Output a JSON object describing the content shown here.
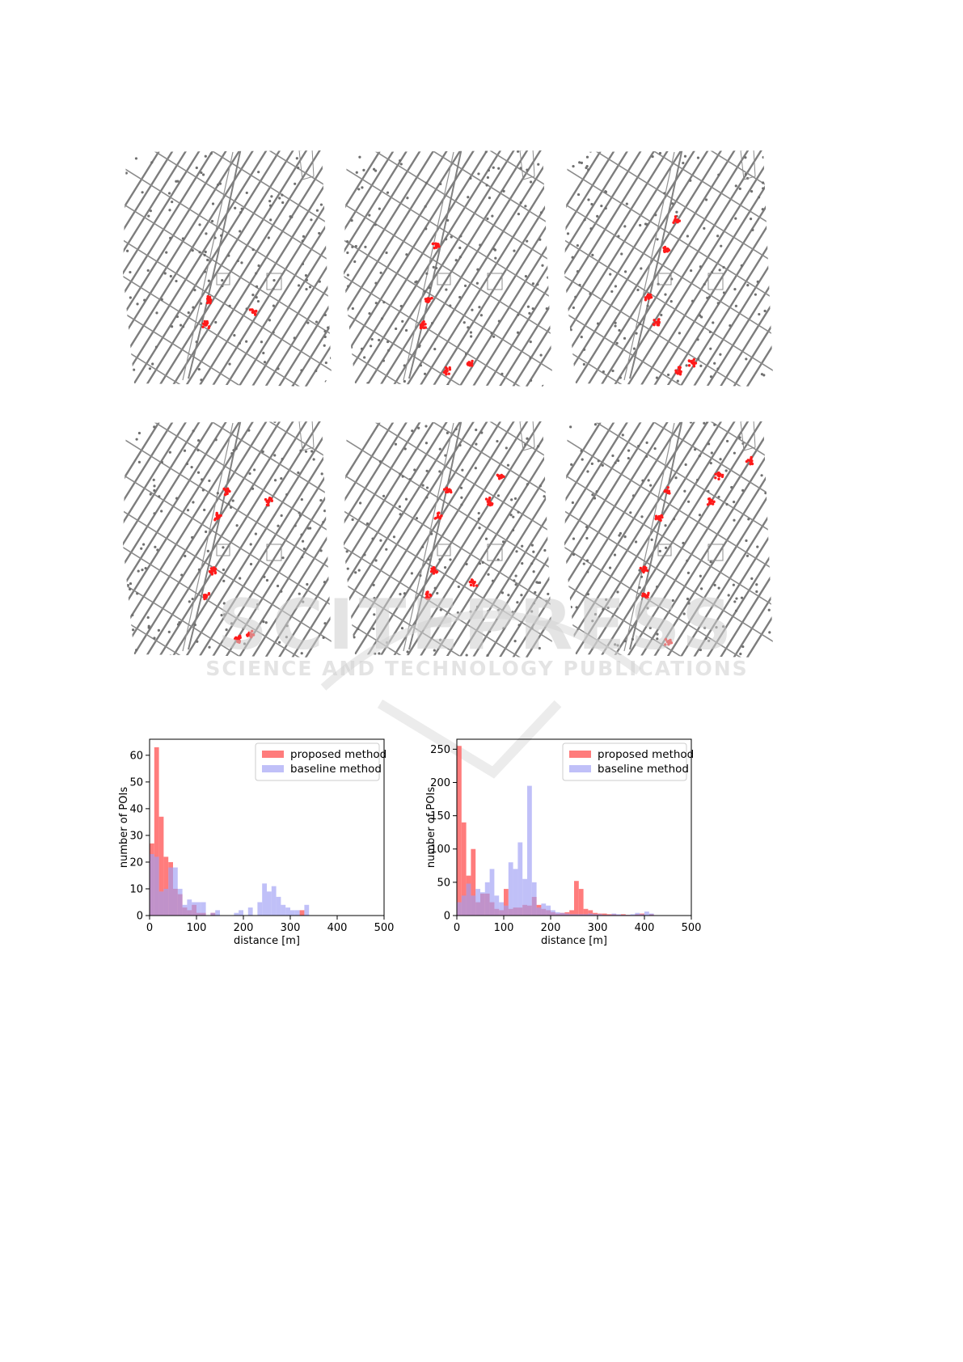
{
  "watermark": {
    "line1": "SCITEPRESS",
    "line2": "SCIENCE AND TECHNOLOGY PUBLICATIONS"
  },
  "maps": [
    {
      "clusters": [
        [
          0.39,
          0.71
        ],
        [
          0.4,
          0.61
        ],
        [
          0.6,
          0.66
        ]
      ]
    },
    {
      "clusters": [
        [
          0.43,
          0.4
        ],
        [
          0.37,
          0.71
        ],
        [
          0.4,
          0.61
        ],
        [
          0.48,
          0.89
        ],
        [
          0.58,
          0.86
        ]
      ]
    },
    {
      "clusters": [
        [
          0.47,
          0.42
        ],
        [
          0.52,
          0.3
        ],
        [
          0.43,
          0.7
        ],
        [
          0.39,
          0.6
        ],
        [
          0.53,
          0.89
        ],
        [
          0.59,
          0.86
        ]
      ]
    },
    {
      "clusters": [
        [
          0.44,
          0.4
        ],
        [
          0.48,
          0.3
        ],
        [
          0.67,
          0.34
        ],
        [
          0.39,
          0.71
        ],
        [
          0.42,
          0.61
        ],
        [
          0.53,
          0.88
        ],
        [
          0.59,
          0.86
        ]
      ]
    },
    {
      "clusters": [
        [
          0.44,
          0.4
        ],
        [
          0.48,
          0.3
        ],
        [
          0.67,
          0.34
        ],
        [
          0.39,
          0.71
        ],
        [
          0.42,
          0.61
        ],
        [
          0.6,
          0.66
        ],
        [
          0.72,
          0.24
        ]
      ]
    },
    {
      "clusters": [
        [
          0.44,
          0.4
        ],
        [
          0.48,
          0.3
        ],
        [
          0.67,
          0.34
        ],
        [
          0.38,
          0.71
        ],
        [
          0.37,
          0.61
        ],
        [
          0.48,
          0.89
        ],
        [
          0.71,
          0.24
        ],
        [
          0.85,
          0.18
        ]
      ]
    }
  ],
  "chart_data": [
    {
      "type": "bar",
      "xlabel": "distance [m]",
      "ylabel": "number of POIs",
      "xlim": [
        0,
        500
      ],
      "ylim": [
        0,
        66
      ],
      "xticks": [
        0,
        100,
        200,
        300,
        400,
        500
      ],
      "yticks": [
        0,
        10,
        20,
        30,
        40,
        50,
        60
      ],
      "bin_width": 10,
      "legend_position": "top-right",
      "series": [
        {
          "name": "proposed method",
          "color": "#ff6e6e",
          "bin_starts": [
            0,
            10,
            20,
            30,
            40,
            50,
            60,
            70,
            80,
            90,
            100,
            110,
            120,
            130,
            140,
            150,
            160,
            170,
            180,
            190,
            200,
            210,
            220,
            230,
            240,
            250,
            260,
            270,
            280,
            290,
            300,
            310,
            320,
            330,
            340
          ],
          "values": [
            27,
            63,
            37,
            22,
            20,
            10,
            8,
            3,
            2,
            4,
            1,
            1,
            0,
            1,
            0,
            0,
            0,
            0,
            0,
            0,
            0,
            0,
            0,
            0,
            0,
            0,
            0,
            0,
            0,
            0,
            0,
            0,
            2,
            0,
            0
          ]
        },
        {
          "name": "baseline method",
          "color": "#9e9ef5",
          "bin_starts": [
            0,
            10,
            20,
            30,
            40,
            50,
            60,
            70,
            80,
            90,
            100,
            110,
            120,
            130,
            140,
            150,
            160,
            170,
            180,
            190,
            200,
            210,
            220,
            230,
            240,
            250,
            260,
            270,
            280,
            290,
            300,
            310,
            320,
            330,
            340
          ],
          "values": [
            23,
            22,
            9,
            10,
            18,
            18,
            10,
            4,
            6,
            5,
            5,
            5,
            0,
            1,
            2,
            0,
            0,
            0,
            1,
            2,
            0,
            3,
            0,
            5,
            12,
            9,
            11,
            7,
            4,
            3,
            2,
            2,
            0,
            4,
            0
          ]
        }
      ]
    },
    {
      "type": "bar",
      "xlabel": "distance [m]",
      "ylabel": "number of POIs",
      "xlim": [
        0,
        500
      ],
      "ylim": [
        0,
        265
      ],
      "xticks": [
        0,
        100,
        200,
        300,
        400,
        500
      ],
      "yticks": [
        0,
        50,
        100,
        150,
        200,
        250
      ],
      "bin_width": 10,
      "legend_position": "top-right",
      "series": [
        {
          "name": "proposed method",
          "color": "#ff6e6e",
          "bin_starts": [
            0,
            10,
            20,
            30,
            40,
            50,
            60,
            70,
            80,
            90,
            100,
            110,
            120,
            130,
            140,
            150,
            160,
            170,
            180,
            190,
            200,
            210,
            220,
            230,
            240,
            250,
            260,
            270,
            280,
            290,
            300,
            310,
            320,
            330,
            340,
            350,
            360,
            370,
            380,
            390,
            400,
            410
          ],
          "values": [
            255,
            140,
            60,
            100,
            20,
            33,
            33,
            20,
            10,
            8,
            40,
            10,
            12,
            12,
            16,
            15,
            28,
            16,
            10,
            8,
            5,
            3,
            4,
            5,
            8,
            52,
            40,
            10,
            8,
            4,
            3,
            3,
            2,
            2,
            1,
            2,
            1,
            0,
            2,
            3,
            0,
            2
          ]
        },
        {
          "name": "baseline method",
          "color": "#9e9ef5",
          "bin_starts": [
            0,
            10,
            20,
            30,
            40,
            50,
            60,
            70,
            80,
            90,
            100,
            110,
            120,
            130,
            140,
            150,
            160,
            170,
            180,
            190,
            200,
            210,
            220,
            230,
            240,
            250,
            260,
            270,
            280,
            290,
            300,
            310,
            320,
            330,
            340,
            350,
            360,
            370,
            380,
            390,
            400,
            410
          ],
          "values": [
            20,
            30,
            48,
            30,
            40,
            35,
            50,
            70,
            30,
            20,
            15,
            80,
            70,
            110,
            55,
            195,
            50,
            12,
            18,
            15,
            8,
            5,
            4,
            3,
            2,
            2,
            2,
            2,
            3,
            2,
            2,
            1,
            1,
            3,
            2,
            1,
            1,
            2,
            4,
            2,
            6,
            3
          ]
        }
      ]
    }
  ]
}
